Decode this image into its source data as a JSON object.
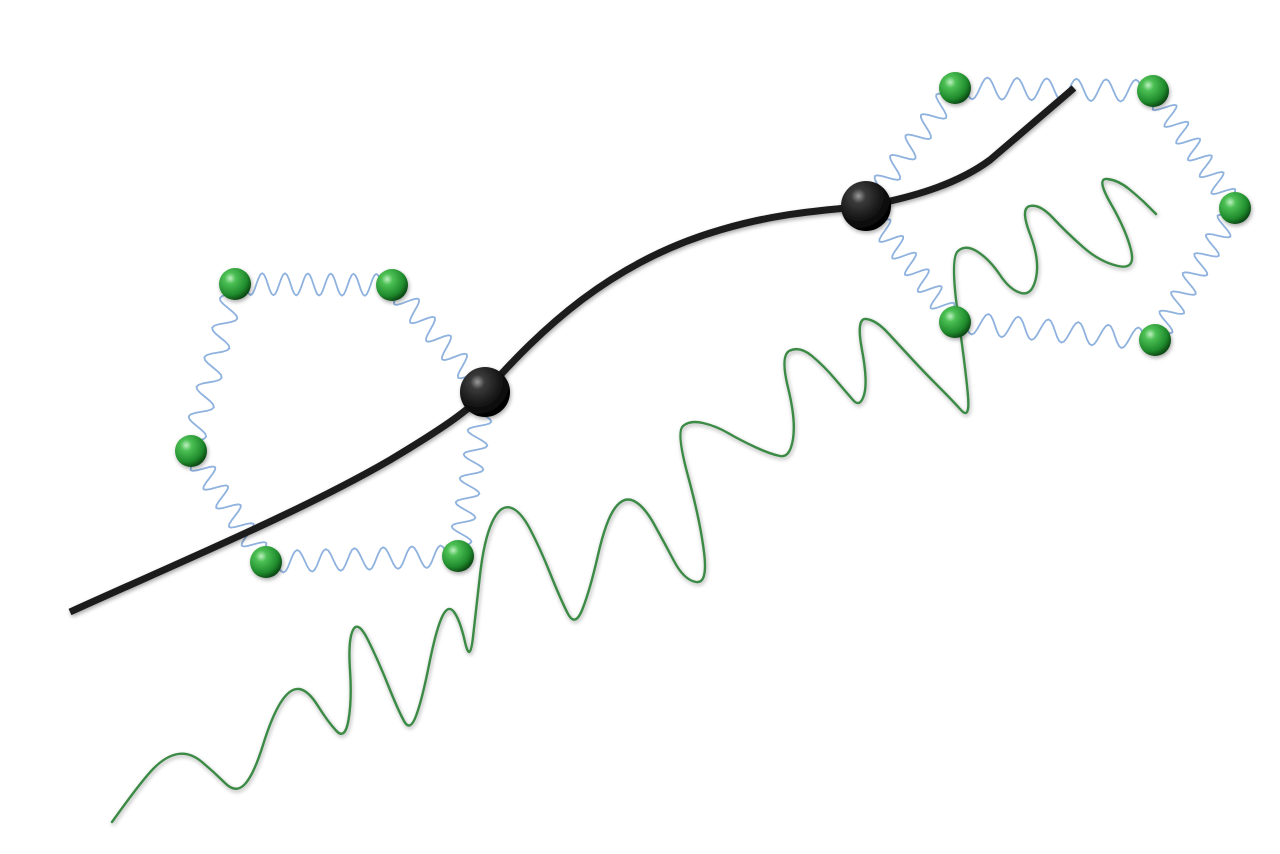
{
  "colors": {
    "background": "#ffffff",
    "main_path": "#1c1c1c",
    "spring": "#8fb2de",
    "bead": "#2e9a3a",
    "bead_dark": "#16621f",
    "anchor": "#1a1a1a",
    "wave": "#3a8a44"
  },
  "elements": {
    "main_path": "black-trajectory-curve",
    "anchors": [
      "left-anchor-bead",
      "right-anchor-bead"
    ],
    "rings": [
      "left-spring-ring",
      "right-spring-ring"
    ],
    "wave": "green-oscillation-wave"
  }
}
